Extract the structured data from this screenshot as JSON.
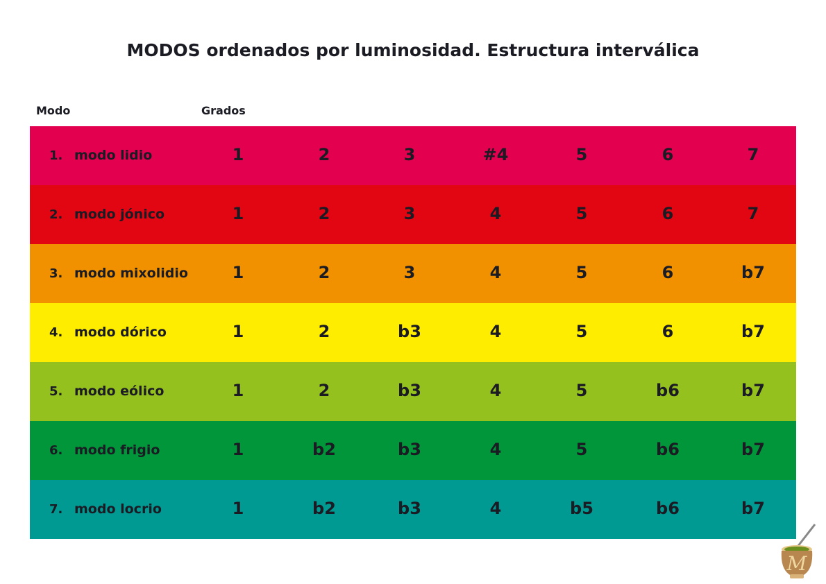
{
  "title": "MODOS ordenados por luminosidad. Estructura interválica",
  "headers": {
    "mode": "Modo",
    "degrees": "Grados"
  },
  "rows": [
    {
      "num": "1.",
      "name": "modo lidio",
      "color": "#E3004F",
      "degrees": [
        "1",
        "2",
        "3",
        "#4",
        "5",
        "6",
        "7"
      ]
    },
    {
      "num": "2.",
      "name": "modo jónico",
      "color": "#E20613",
      "degrees": [
        "1",
        "2",
        "3",
        "4",
        "5",
        "6",
        "7"
      ]
    },
    {
      "num": "3.",
      "name": "modo mixolidio",
      "color": "#F29100",
      "degrees": [
        "1",
        "2",
        "3",
        "4",
        "5",
        "6",
        "b7"
      ]
    },
    {
      "num": "4.",
      "name": "modo dórico",
      "color": "#FFED00",
      "degrees": [
        "1",
        "2",
        "b3",
        "4",
        "5",
        "6",
        "b7"
      ]
    },
    {
      "num": "5.",
      "name": "modo eólico",
      "color": "#95C11F",
      "degrees": [
        "1",
        "2",
        "b3",
        "4",
        "5",
        "b6",
        "b7"
      ]
    },
    {
      "num": "6.",
      "name": "modo frigio",
      "color": "#009639",
      "degrees": [
        "1",
        "b2",
        "b3",
        "4",
        "5",
        "b6",
        "b7"
      ]
    },
    {
      "num": "7.",
      "name": "modo locrio",
      "color": "#009A93",
      "degrees": [
        "1",
        "b2",
        "b3",
        "4",
        "b5",
        "b6",
        "b7"
      ]
    }
  ],
  "logo": {
    "letter": "M"
  }
}
